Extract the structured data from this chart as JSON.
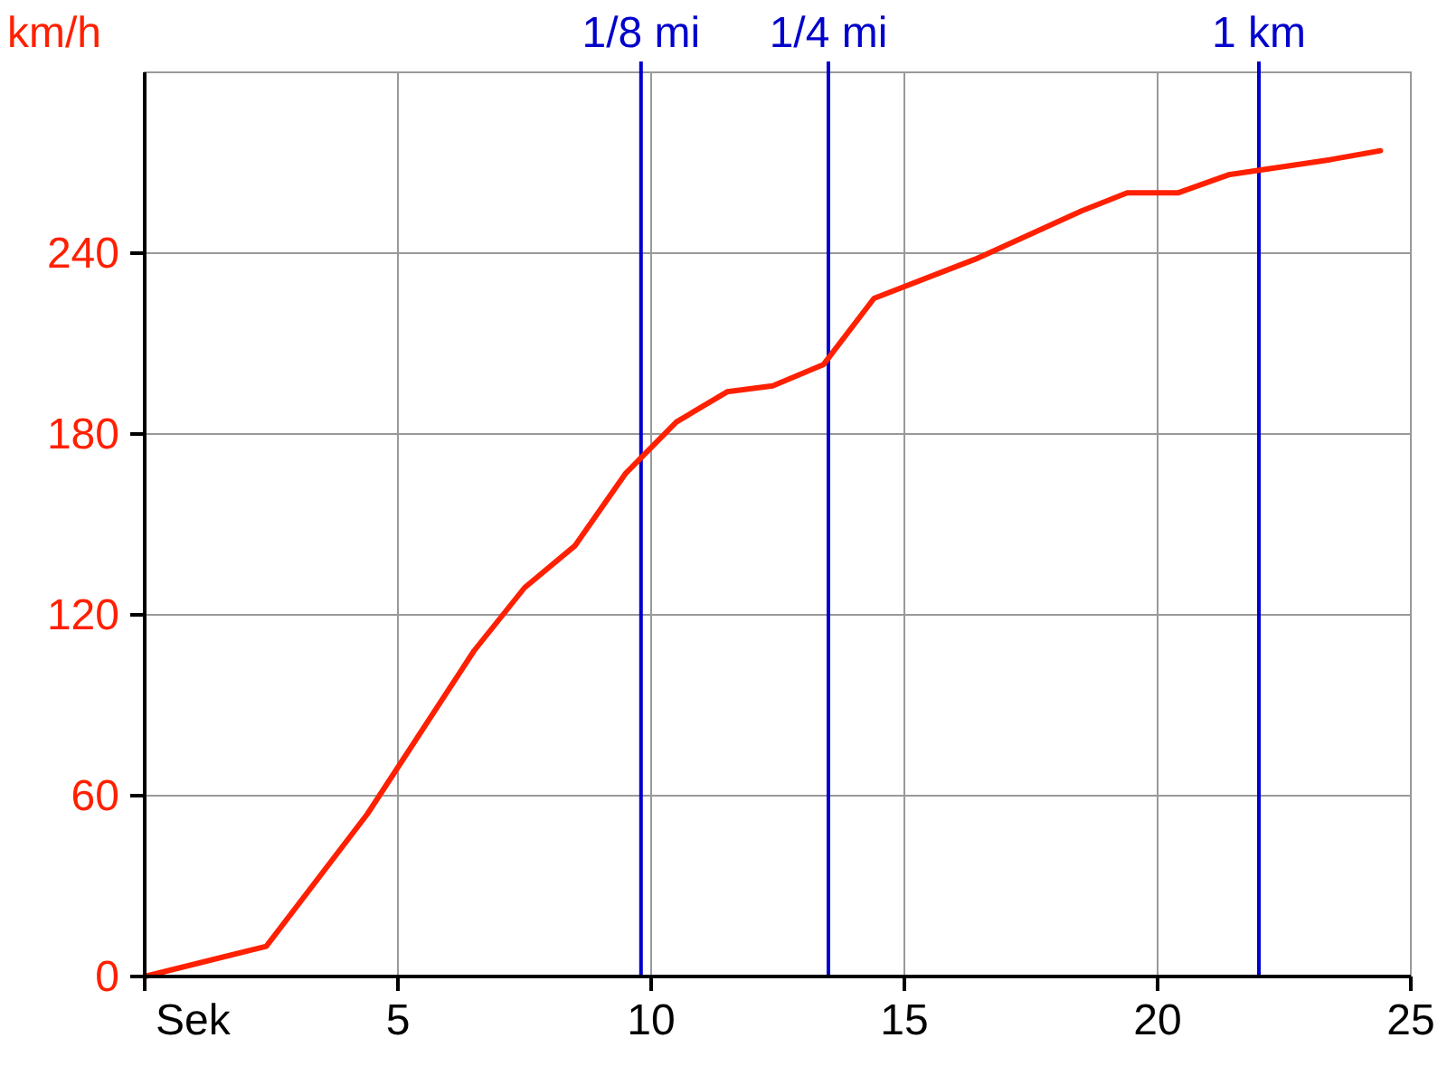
{
  "chart_data": {
    "type": "line",
    "xlabel": "Sek",
    "ylabel": "km/h",
    "xlim": [
      0,
      25
    ],
    "ylim": [
      0,
      300
    ],
    "xticks": [
      5,
      10,
      15,
      20,
      25
    ],
    "yticks": [
      0,
      60,
      120,
      180,
      240
    ],
    "grid": true,
    "marker": "none",
    "line_style": "solid",
    "series": [
      {
        "color": "#ff2000",
        "x": [
          0,
          2.4,
          4.4,
          6.5,
          7.5,
          8.5,
          9.5,
          10.5,
          11.5,
          12.4,
          13.4,
          14.4,
          16.4,
          18.5,
          19.4,
          20.4,
          21.4,
          23.4,
          24.4
        ],
        "values": [
          0,
          10,
          54,
          108,
          129,
          143,
          167,
          184,
          194,
          196,
          203,
          225,
          238,
          254,
          260,
          260,
          266,
          271,
          274
        ]
      }
    ],
    "ref_lines": [
      {
        "axis": "x",
        "value": 9.8,
        "label": "1/8 mi",
        "color": "#0000cc"
      },
      {
        "axis": "x",
        "value": 13.5,
        "label": "1/4 mi",
        "color": "#0000cc"
      },
      {
        "axis": "x",
        "value": 22,
        "label": "1 km",
        "color": "#0000cc"
      }
    ]
  }
}
